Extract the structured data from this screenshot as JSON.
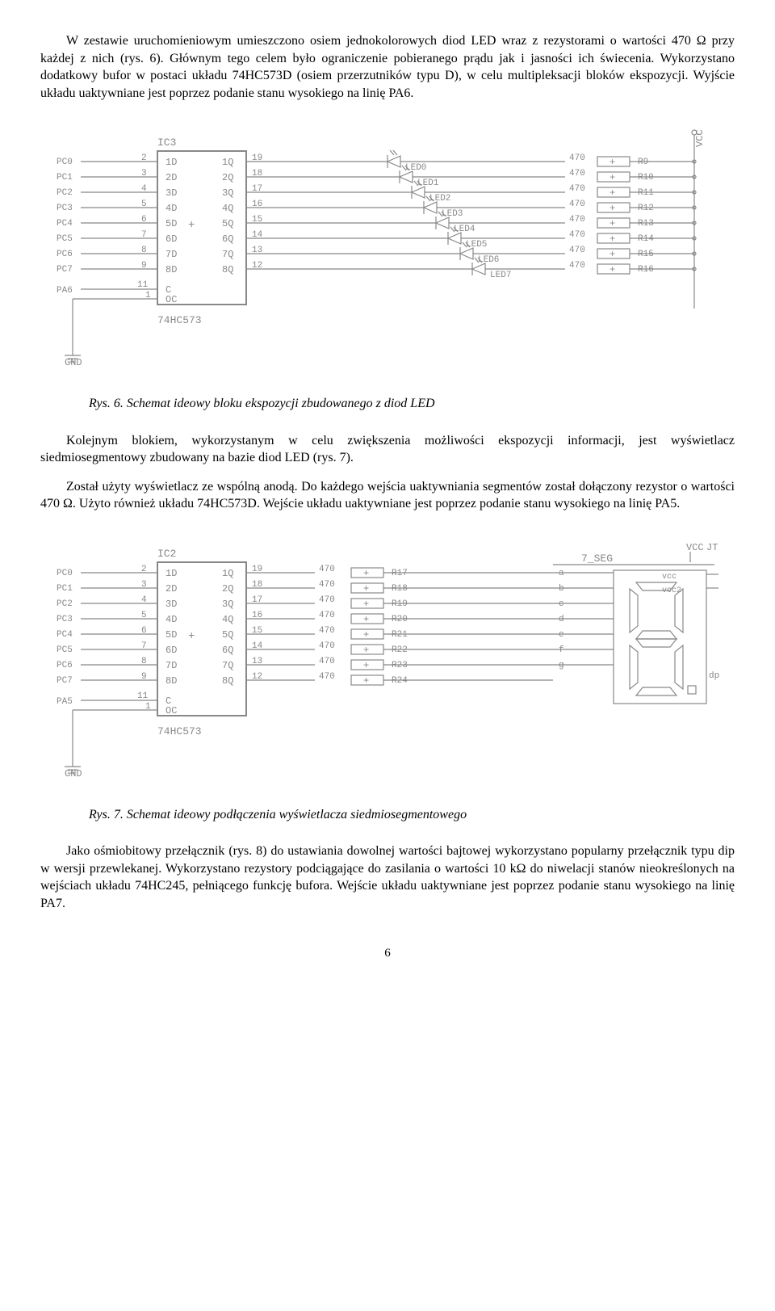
{
  "para1": "W zestawie uruchomieniowym umieszczono osiem jednokolorowych diod LED wraz z rezystorami o wartości 470 Ω przy każdej z nich (rys. 6). Głównym tego celem było ograniczenie pobieranego prądu jak i jasności ich świecenia. Wykorzystano dodatkowy bufor w postaci układu 74HC573D (osiem przerzutników typu D), w celu multipleksacji bloków ekspozycji. Wyjście układu uaktywniane jest poprzez podanie stanu wysokiego na linię PA6.",
  "caption1": "Rys. 6. Schemat ideowy bloku ekspozycji zbudowanego z diod LED",
  "para2": "Kolejnym blokiem, wykorzystanym w celu zwiększenia możliwości ekspozycji informacji, jest wyświetlacz siedmiosegmentowy zbudowany na bazie diod LED (rys. 7).",
  "para3": "Został użyty wyświetlacz ze wspólną anodą. Do każdego wejścia uaktywniania segmentów został dołączony rezystor o wartości 470 Ω. Użyto również układu 74HC573D. Wejście układu uaktywniane jest poprzez podanie stanu wysokiego na linię PA5.",
  "caption2": "Rys. 7. Schemat ideowy podłączenia wyświetlacza siedmiosegmentowego",
  "para4": "Jako ośmiobitowy przełącznik (rys. 8) do ustawiania dowolnej wartości bajtowej wykorzystano popularny przełącznik typu dip w wersji przewlekanej. Wykorzystano rezystory podciągające do zasilania o wartości 10 kΩ do niwelacji stanów nieokreślonych na wejściach układu 74HC245, pełniącego funkcję bufora. Wejście układu uaktywniane jest poprzez podanie stanu wysokiego na linię PA7.",
  "page": "6",
  "fig6": {
    "ic_label": "IC3",
    "ic_type": "74HC573",
    "pc": [
      "PC0",
      "PC1",
      "PC2",
      "PC3",
      "PC4",
      "PC5",
      "PC6",
      "PC7"
    ],
    "pc_pins": [
      "2",
      "3",
      "4",
      "5",
      "6",
      "7",
      "8",
      "9"
    ],
    "d_in": [
      "1D",
      "2D",
      "3D",
      "4D",
      "5D",
      "6D",
      "7D",
      "8D"
    ],
    "q_out": [
      "1Q",
      "2Q",
      "3Q",
      "4Q",
      "5Q",
      "6Q",
      "7Q",
      "8Q"
    ],
    "q_pins": [
      "19",
      "18",
      "17",
      "16",
      "15",
      "14",
      "13",
      "12"
    ],
    "pa": "PA6",
    "pa_pin": "11",
    "oc_pin": "1",
    "c": "C",
    "oc": "OC",
    "gnd": "GND",
    "vcc": "VCC",
    "leds": [
      "LED0",
      "LED1",
      "LED2",
      "LED3",
      "LED4",
      "LED5",
      "LED6",
      "LED7"
    ],
    "rval": "470",
    "r_names": [
      "R9",
      "R10",
      "R11",
      "R12",
      "R13",
      "R14",
      "R15",
      "R16"
    ]
  },
  "fig7": {
    "ic_label": "IC2",
    "ic_type": "74HC573",
    "pc": [
      "PC0",
      "PC1",
      "PC2",
      "PC3",
      "PC4",
      "PC5",
      "PC6",
      "PC7"
    ],
    "pc_pins": [
      "2",
      "3",
      "4",
      "5",
      "6",
      "7",
      "8",
      "9"
    ],
    "d_in": [
      "1D",
      "2D",
      "3D",
      "4D",
      "5D",
      "6D",
      "7D",
      "8D"
    ],
    "q_out": [
      "1Q",
      "2Q",
      "3Q",
      "4Q",
      "5Q",
      "6Q",
      "7Q",
      "8Q"
    ],
    "q_pins": [
      "19",
      "18",
      "17",
      "16",
      "15",
      "14",
      "13",
      "12"
    ],
    "pa": "PA5",
    "pa_pin": "11",
    "oc_pin": "1",
    "c": "C",
    "oc": "OC",
    "gnd": "GND",
    "vcc": "VCC",
    "rval": "470",
    "r_names": [
      "R17",
      "R18",
      "R19",
      "R20",
      "R21",
      "R22",
      "R23",
      "R24"
    ],
    "seg_label": "7_SEG",
    "seg_pins": [
      "a",
      "b",
      "c",
      "d",
      "e",
      "f",
      "g",
      "dp"
    ],
    "seg_vcc": [
      "vcc",
      "vcc2"
    ],
    "jt": "JT"
  }
}
